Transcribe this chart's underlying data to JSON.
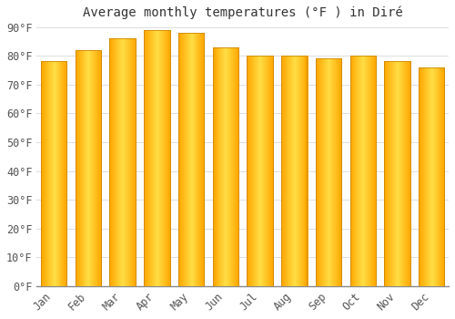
{
  "title": "Average monthly temperatures (°F ) in Diré",
  "months": [
    "Jan",
    "Feb",
    "Mar",
    "Apr",
    "May",
    "Jun",
    "Jul",
    "Aug",
    "Sep",
    "Oct",
    "Nov",
    "Dec"
  ],
  "values": [
    78,
    82,
    86,
    89,
    88,
    83,
    80,
    80,
    79,
    80,
    78,
    76
  ],
  "bar_color_main": "#FFA800",
  "bar_color_light": "#FFD84A",
  "bar_edge_color": "#CC8800",
  "background_color": "#FFFFFF",
  "grid_color": "#DDDDDD",
  "ylim": [
    0,
    90
  ],
  "yticks": [
    0,
    10,
    20,
    30,
    40,
    50,
    60,
    70,
    80,
    90
  ],
  "title_fontsize": 10,
  "tick_fontsize": 8.5,
  "tick_color": "#555555"
}
